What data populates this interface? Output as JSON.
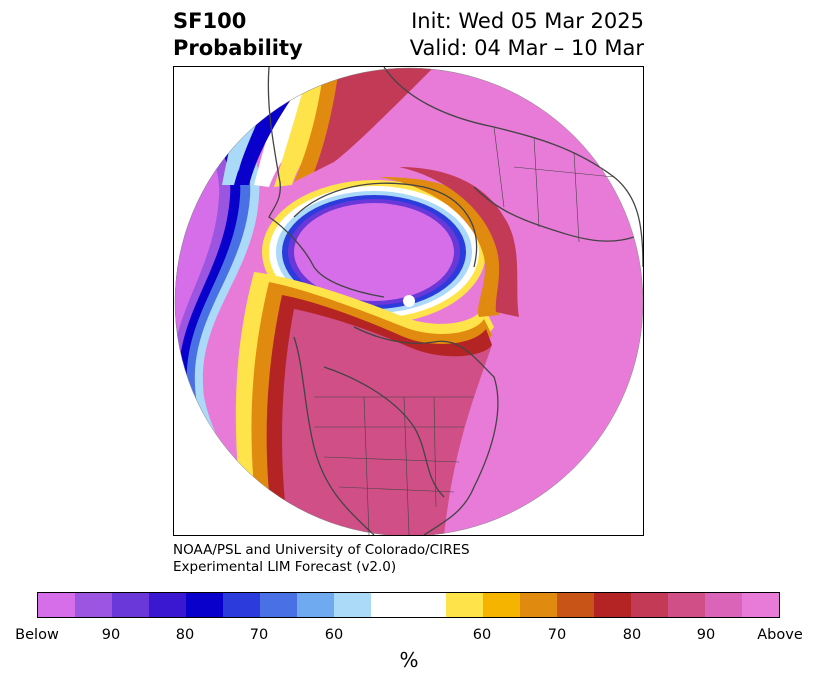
{
  "title": {
    "left_line1": "SF100",
    "left_line2": "Probability",
    "right_line1": "Init: Wed 05 Mar 2025",
    "right_line2": "Valid: 04 Mar – 10 Mar"
  },
  "credit": {
    "line1": "NOAA/PSL and University of Colorado/CIRES",
    "line2": "Experimental LIM Forecast (v2.0)"
  },
  "colorbar": {
    "unit": "%",
    "tick_labels": [
      "Below",
      "90",
      "80",
      "70",
      "60",
      "60",
      "70",
      "80",
      "90",
      "Above"
    ],
    "colors": [
      "#d56ee8",
      "#9b55e0",
      "#6a37d8",
      "#3a17d0",
      "#0a00cc",
      "#2c3cdc",
      "#4a70e6",
      "#6fa9f0",
      "#abd9f8",
      "#ffffff",
      "#fee34a",
      "#f4b400",
      "#e08a10",
      "#c85418",
      "#b42424",
      "#c23a56",
      "#cf4f86",
      "#da65b8",
      "#e87ad8"
    ]
  },
  "map": {
    "projection": "north-polar-stereographic",
    "colors": {
      "above": "#e87ad8",
      "below": "#d56ee8",
      "coastline": "#444444"
    }
  }
}
